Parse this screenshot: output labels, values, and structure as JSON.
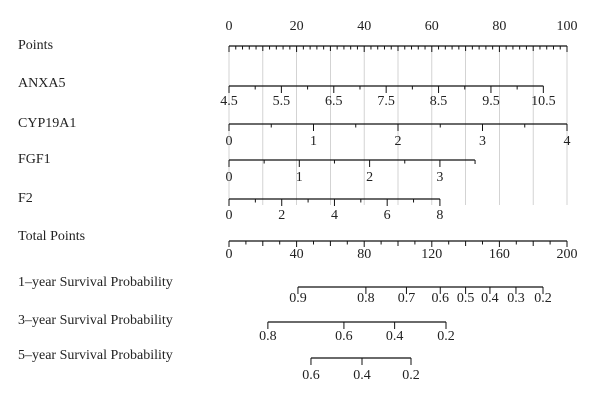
{
  "points_lim": [
    0,
    100
  ],
  "total_points_lim": [
    0,
    200
  ],
  "rows": [
    {
      "label": "Points",
      "scale": "points",
      "ticks": [
        {
          "label": "0",
          "at": 0
        },
        {
          "label": "20",
          "at": 20
        },
        {
          "label": "40",
          "at": 40
        },
        {
          "label": "60",
          "at": 60
        },
        {
          "label": "80",
          "at": 80
        },
        {
          "label": "100",
          "at": 100
        }
      ]
    },
    {
      "label": "ANXA5",
      "scale": "points",
      "ticks": [
        {
          "label": "4.5",
          "at": 0
        },
        {
          "label": "5.5",
          "at": 15.5
        },
        {
          "label": "6.5",
          "at": 31
        },
        {
          "label": "7.5",
          "at": 46.5
        },
        {
          "label": "8.5",
          "at": 62
        },
        {
          "label": "9.5",
          "at": 77.5
        },
        {
          "label": "10.5",
          "at": 93
        }
      ]
    },
    {
      "label": "CYP19A1",
      "scale": "points",
      "ticks": [
        {
          "label": "0",
          "at": 0
        },
        {
          "label": "1",
          "at": 25
        },
        {
          "label": "2",
          "at": 50
        },
        {
          "label": "3",
          "at": 75
        },
        {
          "label": "4",
          "at": 100
        }
      ]
    },
    {
      "label": "FGF1",
      "scale": "points",
      "ticks": [
        {
          "label": "0",
          "at": 0
        },
        {
          "label": "1",
          "at": 20.8
        },
        {
          "label": "2",
          "at": 41.6
        },
        {
          "label": "3",
          "at": 62.4
        }
      ]
    },
    {
      "label": "F2",
      "scale": "points",
      "ticks": [
        {
          "label": "0",
          "at": 0
        },
        {
          "label": "2",
          "at": 15.6
        },
        {
          "label": "4",
          "at": 31.2
        },
        {
          "label": "6",
          "at": 46.8
        },
        {
          "label": "8",
          "at": 62.4
        }
      ]
    },
    {
      "label": "Total Points",
      "scale": "total",
      "ticks": [
        {
          "label": "0",
          "at": 0
        },
        {
          "label": "40",
          "at": 40
        },
        {
          "label": "80",
          "at": 80
        },
        {
          "label": "120",
          "at": 120
        },
        {
          "label": "160",
          "at": 160
        },
        {
          "label": "200",
          "at": 200
        }
      ]
    },
    {
      "label": "1–year Survival Probability",
      "scale": "total",
      "ticks": [
        {
          "label": "0.9",
          "at": 40.8
        },
        {
          "label": "0.8",
          "at": 81
        },
        {
          "label": "0.7",
          "at": 105
        },
        {
          "label": "0.6",
          "at": 125
        },
        {
          "label": "0.5",
          "at": 140
        },
        {
          "label": "0.4",
          "at": 154.4
        },
        {
          "label": "0.3",
          "at": 169.8
        },
        {
          "label": "0.2",
          "at": 185.8
        }
      ]
    },
    {
      "label": "3–year Survival Probability",
      "scale": "total",
      "ticks": [
        {
          "label": "0.8",
          "at": 23
        },
        {
          "label": "0.6",
          "at": 68
        },
        {
          "label": "0.4",
          "at": 98
        },
        {
          "label": "0.2",
          "at": 128.4
        }
      ]
    },
    {
      "label": "5–year Survival Probability",
      "scale": "total",
      "ticks": [
        {
          "label": "0.6",
          "at": 48.5
        },
        {
          "label": "0.4",
          "at": 78.7
        },
        {
          "label": "0.2",
          "at": 107.7
        }
      ]
    }
  ]
}
